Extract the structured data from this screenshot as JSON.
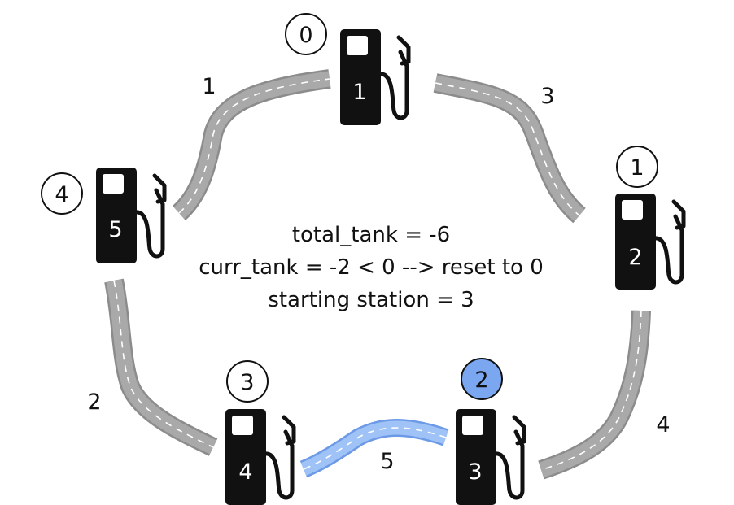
{
  "colors": {
    "road": "#a9a9a9",
    "road_edge": "#8c8c8c",
    "road_highlight": "#9fc2f7",
    "road_highlight_edge": "#6c9ae6",
    "pump": "#111111",
    "station_highlight": "#7aa7f0"
  },
  "icon": "gas-pump-icon",
  "stations": [
    {
      "id": "0",
      "gas": "1",
      "highlighted": false
    },
    {
      "id": "1",
      "gas": "2",
      "highlighted": false
    },
    {
      "id": "2",
      "gas": "3",
      "highlighted": true
    },
    {
      "id": "3",
      "gas": "4",
      "highlighted": false
    },
    {
      "id": "4",
      "gas": "5",
      "highlighted": false
    }
  ],
  "roads": [
    {
      "from": "0",
      "to": "1",
      "cost": "3",
      "highlighted": false
    },
    {
      "from": "1",
      "to": "2",
      "cost": "4",
      "highlighted": false
    },
    {
      "from": "2",
      "to": "3",
      "cost": "5",
      "highlighted": true
    },
    {
      "from": "3",
      "to": "4",
      "cost": "2",
      "highlighted": false
    },
    {
      "from": "4",
      "to": "0",
      "cost": "1",
      "highlighted": false
    }
  ],
  "info": {
    "total_tank": "total_tank = -6",
    "curr_tank": "curr_tank = -2 < 0 --> reset to 0",
    "starting_station": "starting station = 3"
  }
}
